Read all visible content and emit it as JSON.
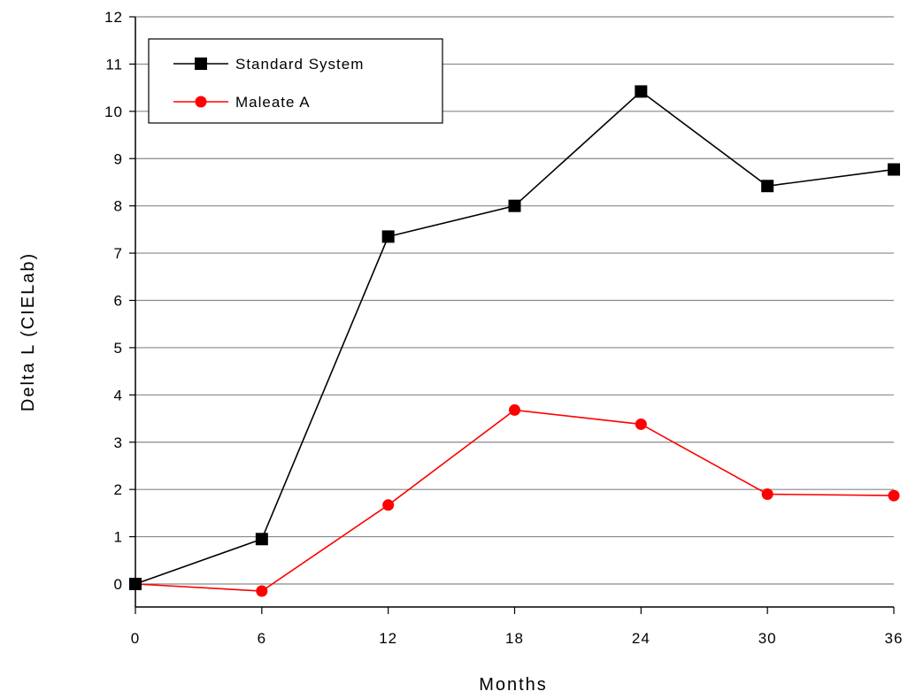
{
  "chart_data": {
    "type": "line",
    "title": "",
    "xlabel": "Months",
    "ylabel": "Delta L (CIELab)",
    "xlim": [
      0,
      36
    ],
    "ylim": [
      -0.5,
      12
    ],
    "x_ticks": [
      0,
      6,
      12,
      18,
      24,
      30,
      36
    ],
    "y_ticks": [
      0,
      1,
      2,
      3,
      4,
      5,
      6,
      7,
      8,
      9,
      10,
      11,
      12
    ],
    "grid": "horizontal",
    "legend_position": "top-left",
    "series": [
      {
        "name": "Standard System",
        "marker": "square",
        "color": "#000000",
        "x": [
          0,
          6,
          12,
          18,
          24,
          30,
          36
        ],
        "y": [
          0,
          0.95,
          7.35,
          8.0,
          10.42,
          8.42,
          8.77
        ]
      },
      {
        "name": "Maleate A",
        "marker": "circle",
        "color": "#ff0000",
        "x": [
          0,
          6,
          12,
          18,
          24,
          30,
          36
        ],
        "y": [
          0,
          -0.15,
          1.67,
          3.68,
          3.38,
          1.9,
          1.87
        ]
      }
    ]
  }
}
